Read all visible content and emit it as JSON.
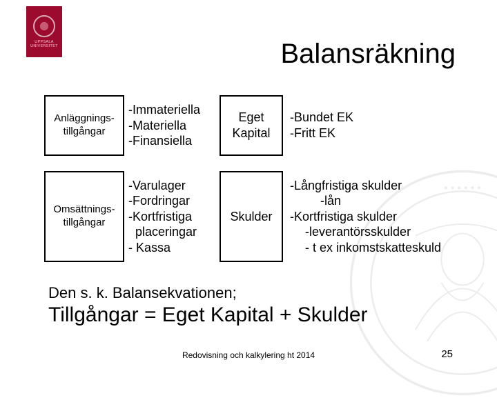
{
  "logo": {
    "line1": "UPPSALA",
    "line2": "UNIVERSITET",
    "bg": "#9c0a2e"
  },
  "heading": "Balansräkning",
  "table": {
    "rows": [
      {
        "a": "Anläggnings-\ntillgångar",
        "b": "-Immateriella\n-Materiella\n-Finansiella",
        "c": "Eget\nKapital",
        "d": {
          "lines": [
            {
              "t": "-Bundet EK",
              "indent": 0
            },
            {
              "t": "-Fritt EK",
              "indent": 0
            }
          ]
        }
      },
      {
        "a": "Omsättnings-\ntillgångar",
        "b": "-Varulager\n-Fordringar\n-Kortfristiga\n  placeringar\n- Kassa",
        "c": "Skulder",
        "d": {
          "lines": [
            {
              "t": "-Långfristiga skulder",
              "indent": 0
            },
            {
              "t": "-lån",
              "indent": 2
            },
            {
              "t": "-Kortfristiga skulder",
              "indent": 0
            },
            {
              "t": "-leverantörsskulder",
              "indent": 1
            },
            {
              "t": "- t ex inkomstskatteskuld",
              "indent": 1
            }
          ]
        }
      }
    ],
    "box_border_color": "#000000",
    "font_sizes": {
      "col_a": 15,
      "col_b": 18,
      "col_c": 18,
      "col_d": 18
    }
  },
  "equation": {
    "label": "Den s. k. Balansekvationen;",
    "text": "Tillgångar = Eget Kapital + Skulder"
  },
  "footer": {
    "center": "Redovisning och kalkylering  ht 2014",
    "page": "25"
  },
  "colors": {
    "background": "#ffffff",
    "text": "#000000",
    "logo_bg": "#9c0a2e"
  }
}
